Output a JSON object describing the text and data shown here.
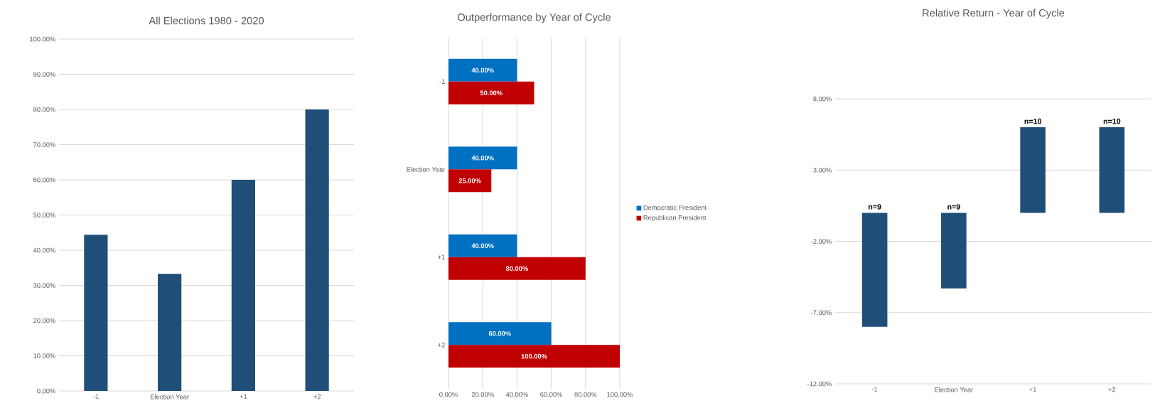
{
  "chart_data": [
    {
      "type": "bar",
      "title": "All Elections 1980 - 2020",
      "categories": [
        "-1",
        "Election Year",
        "+1",
        "+2"
      ],
      "values": [
        44.4,
        33.3,
        60,
        80
      ],
      "color": "#1f4e79",
      "ylim": [
        0,
        100
      ],
      "yticks": [
        {
          "value": 0,
          "label": "0.00%"
        },
        {
          "value": 10,
          "label": "10.00%"
        },
        {
          "value": 20,
          "label": "20.00%"
        },
        {
          "value": 30,
          "label": "30.00%"
        },
        {
          "value": 40,
          "label": "40.00%"
        },
        {
          "value": 50,
          "label": "50.00%"
        },
        {
          "value": 60,
          "label": "60.00%"
        },
        {
          "value": 70,
          "label": "70.00%"
        },
        {
          "value": 80,
          "label": "80.00%"
        },
        {
          "value": 90,
          "label": "90.00%"
        },
        {
          "value": 100,
          "label": "100.00%"
        }
      ],
      "grid": "y"
    },
    {
      "type": "bar",
      "orientation": "horizontal",
      "title": "Outperformance by Year of Cycle",
      "categories": [
        "-1",
        "Election Year",
        "+1",
        "+2"
      ],
      "series": [
        {
          "name": "Democratic President",
          "color": "#0070c0",
          "values": [
            40,
            40,
            40,
            60
          ],
          "value_labels": [
            "40.00%",
            "40.00%",
            "40.00%",
            "60.00%"
          ]
        },
        {
          "name": "Republican President",
          "color": "#c00000",
          "values": [
            50,
            25,
            80,
            100
          ],
          "value_labels": [
            "50.00%",
            "25.00%",
            "80.00%",
            "100.00%"
          ]
        }
      ],
      "xlim": [
        0,
        100
      ],
      "xticks": [
        {
          "value": 0,
          "label": "0.00%"
        },
        {
          "value": 20,
          "label": "20.00%"
        },
        {
          "value": 40,
          "label": "40.00%"
        },
        {
          "value": 60,
          "label": "60.00%"
        },
        {
          "value": 80,
          "label": "80.00%"
        },
        {
          "value": 100,
          "label": "100.00%"
        }
      ],
      "grid": "x",
      "legend": "right"
    },
    {
      "type": "bar",
      "title": "Relative Return - Year of Cycle",
      "categories": [
        "-1",
        "Election Year",
        "+1",
        "+2"
      ],
      "values": [
        -8.0,
        -5.3,
        6.0,
        6.0
      ],
      "color": "#1f4e79",
      "ylim": [
        -12,
        8
      ],
      "yticks": [
        {
          "value": -12,
          "label": "-12.00%"
        },
        {
          "value": -7,
          "label": "-7.00%"
        },
        {
          "value": -2,
          "label": "-2.00%"
        },
        {
          "value": 3,
          "label": "3.00%"
        },
        {
          "value": 8,
          "label": "8.00%"
        }
      ],
      "grid": "y",
      "annotations": [
        {
          "text": "n=9",
          "x": "-1",
          "y": 0
        },
        {
          "text": "n=9",
          "x": "Election Year",
          "y": 0
        },
        {
          "text": "n=10",
          "x": "+1",
          "y": 6.0
        },
        {
          "text": "n=10",
          "x": "+2",
          "y": 6.0
        }
      ]
    }
  ]
}
